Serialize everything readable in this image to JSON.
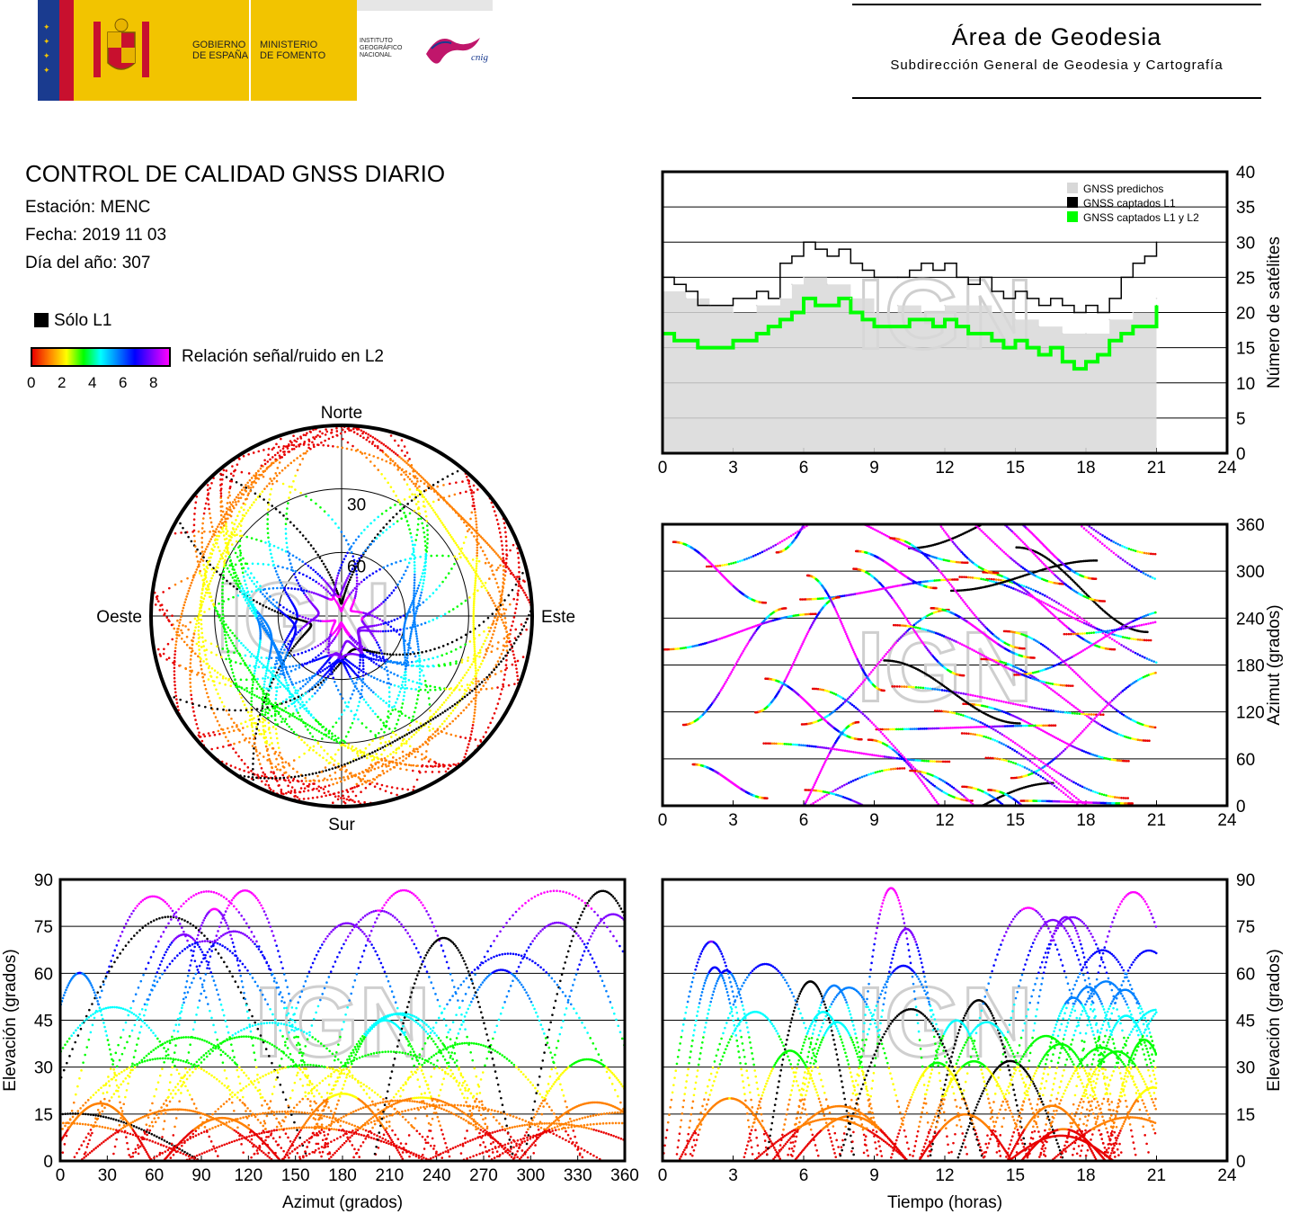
{
  "header": {
    "gobierno": "GOBIERNO\nDE ESPAÑA",
    "ministerio": "MINISTERIO\nDE FOMENTO",
    "instituto": "INSTITUTO\nGEOGRÁFICO\nNACIONAL",
    "cnig": "cnig",
    "area_title": "Área de Geodesia",
    "area_subtitle": "Subdirección General de Geodesia y Cartografía"
  },
  "report": {
    "title": "CONTROL DE CALIDAD GNSS DIARIO",
    "station": "Estación: MENC",
    "date": "Fecha: 2019 11 03",
    "doy": "Día del año: 307"
  },
  "legend": {
    "l1_only": "Sólo L1",
    "snr_label": "Relación señal/ruido en L2",
    "snr_ticks": [
      "0",
      "2",
      "4",
      "6",
      "8"
    ],
    "colormap": [
      "#e80000",
      "#ff8000",
      "#ffff00",
      "#00ff00",
      "#00ffff",
      "#0080ff",
      "#0000ff",
      "#8000ff",
      "#ff00ff"
    ]
  },
  "watermark": "IGN",
  "chart_data": [
    {
      "id": "satellite-count",
      "type": "area",
      "xlim": [
        0,
        24
      ],
      "ylim": [
        0,
        40
      ],
      "x_ticks": [
        "0",
        "3",
        "6",
        "9",
        "12",
        "15",
        "18",
        "21",
        "24"
      ],
      "y_ticks": [
        "0",
        "5",
        "10",
        "15",
        "20",
        "25",
        "30",
        "35",
        "40"
      ],
      "ylabel": "Número de satélites",
      "legend_position": "top-right",
      "grid": true,
      "series": [
        {
          "name": "GNSS predichos",
          "color": "#d8d8d8",
          "x": [
            0,
            1,
            2,
            3,
            4,
            5,
            5.5,
            6,
            7,
            8,
            9,
            10,
            11,
            12,
            13,
            14,
            15,
            16,
            17,
            18,
            19,
            20,
            21
          ],
          "values": [
            23,
            22,
            21,
            20,
            21,
            22,
            24,
            25,
            24,
            22,
            20,
            21,
            20,
            21,
            21,
            20,
            19,
            18,
            17,
            17,
            19,
            20,
            22
          ]
        },
        {
          "name": "GNSS captados L1",
          "color": "#000000",
          "x": [
            0,
            0.5,
            1,
            1.5,
            2,
            3,
            4,
            4.5,
            5,
            5.5,
            6,
            6.5,
            7,
            7.5,
            8,
            8.5,
            9,
            10,
            10.5,
            11,
            11.5,
            12,
            12.5,
            13,
            13.5,
            14,
            14.5,
            15,
            15.5,
            16,
            16.5,
            17,
            17.5,
            18,
            18.5,
            19,
            19.5,
            20,
            20.5,
            21
          ],
          "values": [
            25,
            24,
            23,
            21,
            21,
            22,
            23,
            22,
            27,
            28,
            30,
            29,
            28,
            29,
            27,
            26,
            25,
            25,
            26,
            27,
            26,
            27,
            25,
            24,
            25,
            23,
            22,
            23,
            22,
            21,
            22,
            21,
            20,
            21,
            20,
            22,
            25,
            27,
            28,
            30
          ]
        },
        {
          "name": "GNSS captados L1 y L2",
          "color": "#00ff00",
          "x": [
            0,
            0.5,
            1,
            1.5,
            2,
            3,
            4,
            4.5,
            5,
            5.5,
            6,
            6.5,
            7,
            7.5,
            8,
            8.5,
            9,
            10,
            10.5,
            11,
            11.5,
            12,
            12.5,
            13,
            13.5,
            14,
            14.5,
            15,
            15.5,
            16,
            16.5,
            17,
            17.5,
            18,
            18.5,
            19,
            19.5,
            20,
            20.5,
            21
          ],
          "values": [
            17,
            16,
            16,
            15,
            15,
            16,
            17,
            18,
            19,
            20,
            22,
            21,
            21,
            22,
            20,
            19,
            18,
            18,
            19,
            19,
            18,
            19,
            18,
            17,
            17,
            16,
            15,
            16,
            15,
            14,
            15,
            13,
            12,
            13,
            14,
            16,
            17,
            18,
            18,
            21
          ]
        }
      ]
    },
    {
      "id": "azimuth-time",
      "type": "scatter",
      "xlim": [
        0,
        24
      ],
      "ylim": [
        0,
        360
      ],
      "x_ticks": [
        "0",
        "3",
        "6",
        "9",
        "12",
        "15",
        "18",
        "21",
        "24"
      ],
      "y_ticks": [
        "0",
        "60",
        "120",
        "180",
        "240",
        "300",
        "360"
      ],
      "ylabel": "Azimut (grados)",
      "grid": true
    },
    {
      "id": "elevation-azimuth",
      "type": "scatter",
      "xlim": [
        0,
        360
      ],
      "ylim": [
        0,
        90
      ],
      "x_ticks": [
        "0",
        "30",
        "60",
        "90",
        "120",
        "150",
        "180",
        "210",
        "240",
        "270",
        "300",
        "330",
        "360"
      ],
      "y_ticks": [
        "0",
        "15",
        "30",
        "45",
        "60",
        "75",
        "90"
      ],
      "xlabel": "Azimut (grados)",
      "ylabel": "Elevación (grados)",
      "grid": true
    },
    {
      "id": "elevation-time",
      "type": "scatter",
      "xlim": [
        0,
        24
      ],
      "ylim": [
        0,
        90
      ],
      "x_ticks": [
        "0",
        "3",
        "6",
        "9",
        "12",
        "15",
        "18",
        "21",
        "24"
      ],
      "y_ticks": [
        "0",
        "15",
        "30",
        "45",
        "60",
        "75",
        "90"
      ],
      "xlabel": "Tiempo (horas)",
      "ylabel": "Elevación (grados)",
      "grid": true
    },
    {
      "id": "skyplot",
      "type": "scatter",
      "directions": {
        "north": "Norte",
        "south": "Sur",
        "east": "Este",
        "west": "Oeste"
      },
      "ring_labels": [
        "30",
        "60"
      ]
    }
  ]
}
